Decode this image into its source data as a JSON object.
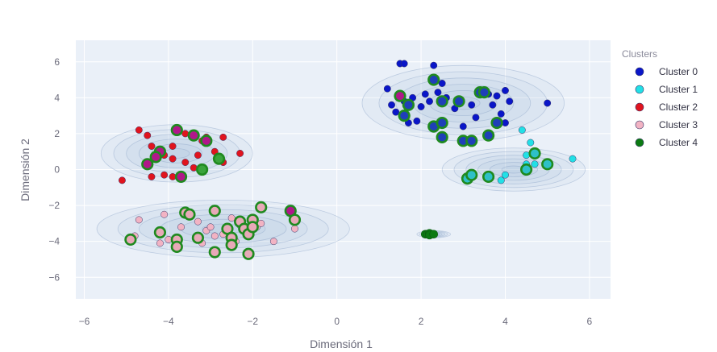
{
  "chart_data": {
    "type": "scatter",
    "xlabel": "Dimensión 1",
    "ylabel": "Dimensión 2",
    "xlim": [
      -6.2,
      6.5
    ],
    "ylim": [
      -7.2,
      7.2
    ],
    "x_ticks": [
      -6,
      -4,
      -2,
      0,
      2,
      4,
      6
    ],
    "y_ticks": [
      -6,
      -4,
      -2,
      0,
      2,
      4,
      6
    ],
    "grid": true,
    "legend_placement": "top-right",
    "legend": {
      "title": "Clusters",
      "entries": [
        {
          "name": "Cluster 0",
          "color": "#0a16c8"
        },
        {
          "name": "Cluster 1",
          "color": "#22e0e6"
        },
        {
          "name": "Cluster 2",
          "color": "#e0141e"
        },
        {
          "name": "Cluster 3",
          "color": "#f2b3c3"
        },
        {
          "name": "Cluster 4",
          "color": "#0c7a12"
        }
      ]
    },
    "density_regions": [
      {
        "cx": 3.0,
        "cy": 3.7,
        "rx": 2.4,
        "ry": 2.1
      },
      {
        "cx": 4.2,
        "cy": 0.0,
        "rx": 1.7,
        "ry": 1.2
      },
      {
        "cx": -3.8,
        "cy": 0.9,
        "rx": 1.8,
        "ry": 1.6
      },
      {
        "cx": -2.7,
        "cy": -3.3,
        "rx": 3.0,
        "ry": 1.6
      },
      {
        "cx": 2.3,
        "cy": -3.6,
        "rx": 0.4,
        "ry": 0.2
      }
    ],
    "series": [
      {
        "name": "Cluster 0",
        "color": "#0a16c8",
        "points": [
          [
            1.5,
            5.9
          ],
          [
            1.6,
            5.9
          ],
          [
            1.2,
            4.5
          ],
          [
            1.3,
            3.6
          ],
          [
            1.4,
            3.2
          ],
          [
            1.6,
            3.8
          ],
          [
            1.8,
            4.0
          ],
          [
            1.9,
            2.7
          ],
          [
            1.7,
            2.6
          ],
          [
            2.1,
            4.2
          ],
          [
            2.0,
            3.5
          ],
          [
            2.4,
            4.3
          ],
          [
            2.5,
            4.8
          ],
          [
            2.6,
            4.0
          ],
          [
            2.2,
            3.8
          ],
          [
            2.8,
            3.4
          ],
          [
            3.0,
            2.4
          ],
          [
            3.2,
            3.6
          ],
          [
            3.4,
            4.4
          ],
          [
            3.6,
            4.2
          ],
          [
            3.7,
            3.6
          ],
          [
            3.8,
            4.1
          ],
          [
            3.9,
            3.1
          ],
          [
            4.0,
            2.6
          ],
          [
            4.1,
            3.8
          ],
          [
            4.0,
            4.4
          ],
          [
            5.0,
            3.7
          ],
          [
            2.3,
            5.8
          ],
          [
            2.9,
            3.8
          ],
          [
            3.3,
            2.9
          ]
        ]
      },
      {
        "name": "Cluster 1",
        "color": "#22e0e6",
        "points": [
          [
            4.4,
            2.2
          ],
          [
            4.5,
            0.8
          ],
          [
            4.6,
            1.5
          ],
          [
            4.0,
            -0.3
          ],
          [
            3.9,
            -0.6
          ],
          [
            4.7,
            0.3
          ],
          [
            5.6,
            0.6
          ],
          [
            4.5,
            0.3
          ]
        ]
      },
      {
        "name": "Cluster 2",
        "color": "#e0141e",
        "points": [
          [
            -5.1,
            -0.6
          ],
          [
            -4.7,
            2.2
          ],
          [
            -4.5,
            1.9
          ],
          [
            -4.4,
            1.3
          ],
          [
            -4.2,
            1.1
          ],
          [
            -4.1,
            0.8
          ],
          [
            -4.1,
            -0.3
          ],
          [
            -3.9,
            1.3
          ],
          [
            -3.9,
            0.6
          ],
          [
            -3.8,
            2.3
          ],
          [
            -3.6,
            0.4
          ],
          [
            -3.6,
            2.0
          ],
          [
            -3.3,
            0.8
          ],
          [
            -3.4,
            0.1
          ],
          [
            -3.2,
            1.6
          ],
          [
            -3.1,
            1.8
          ],
          [
            -2.9,
            1.0
          ],
          [
            -2.7,
            1.8
          ],
          [
            -2.7,
            0.4
          ],
          [
            -2.3,
            0.9
          ],
          [
            -4.4,
            -0.4
          ],
          [
            -3.9,
            -0.4
          ]
        ]
      },
      {
        "name": "Cluster 3",
        "color": "#f2b3c3",
        "points": [
          [
            -4.7,
            -2.8
          ],
          [
            -4.8,
            -3.7
          ],
          [
            -4.2,
            -4.1
          ],
          [
            -4.1,
            -2.5
          ],
          [
            -4.0,
            -3.9
          ],
          [
            -3.8,
            -4.0
          ],
          [
            -3.7,
            -3.2
          ],
          [
            -3.3,
            -2.9
          ],
          [
            -3.1,
            -3.4
          ],
          [
            -3.0,
            -3.2
          ],
          [
            -2.9,
            -3.7
          ],
          [
            -2.7,
            -3.6
          ],
          [
            -2.5,
            -2.7
          ],
          [
            -2.3,
            -3.1
          ],
          [
            -2.1,
            -3.2
          ],
          [
            -1.9,
            -3.2
          ],
          [
            -1.5,
            -4.0
          ],
          [
            -1.0,
            -3.3
          ],
          [
            -3.2,
            -4.1
          ],
          [
            -2.4,
            -4.0
          ],
          [
            -1.8,
            -3.0
          ]
        ]
      }
    ],
    "highlighted": [
      {
        "x": -3.8,
        "y": 2.2,
        "fill": "#b1178a"
      },
      {
        "x": -3.4,
        "y": 1.9,
        "fill": "#b1178a"
      },
      {
        "x": -3.1,
        "y": 1.6,
        "fill": "#b1178a"
      },
      {
        "x": -4.2,
        "y": 1.0,
        "fill": "#b1178a"
      },
      {
        "x": -4.3,
        "y": 0.7,
        "fill": "#b1178a"
      },
      {
        "x": -4.5,
        "y": 0.3,
        "fill": "#b1178a"
      },
      {
        "x": -3.7,
        "y": -0.4,
        "fill": "#b1178a"
      },
      {
        "x": -1.1,
        "y": -2.3,
        "fill": "#b1178a"
      },
      {
        "x": 1.5,
        "y": 4.1,
        "fill": "#b1178a"
      },
      {
        "x": -3.2,
        "y": 0.0,
        "fill": "#3aa43c"
      },
      {
        "x": -2.8,
        "y": 0.6,
        "fill": "#3aa43c"
      },
      {
        "x": 1.6,
        "y": 3.0,
        "fill": "#1f3fb8"
      },
      {
        "x": 1.7,
        "y": 3.6,
        "fill": "#1f3fb8"
      },
      {
        "x": 2.3,
        "y": 5.0,
        "fill": "#1f3fb8"
      },
      {
        "x": 2.5,
        "y": 3.8,
        "fill": "#1f3fb8"
      },
      {
        "x": 2.3,
        "y": 2.4,
        "fill": "#1f3fb8"
      },
      {
        "x": 2.5,
        "y": 2.6,
        "fill": "#1f3fb8"
      },
      {
        "x": 2.5,
        "y": 1.8,
        "fill": "#1f3fb8"
      },
      {
        "x": 2.9,
        "y": 3.8,
        "fill": "#1f3fb8"
      },
      {
        "x": 3.0,
        "y": 1.6,
        "fill": "#1f3fb8"
      },
      {
        "x": 3.2,
        "y": 1.6,
        "fill": "#1f3fb8"
      },
      {
        "x": 3.4,
        "y": 4.3,
        "fill": "#1f3fb8"
      },
      {
        "x": 3.5,
        "y": 4.3,
        "fill": "#1f3fb8"
      },
      {
        "x": 3.6,
        "y": 1.9,
        "fill": "#1f3fb8"
      },
      {
        "x": 3.8,
        "y": 2.6,
        "fill": "#1f3fb8"
      },
      {
        "x": 3.1,
        "y": -0.5,
        "fill": "#2ec0c8"
      },
      {
        "x": 3.2,
        "y": -0.3,
        "fill": "#2ec0c8"
      },
      {
        "x": 3.6,
        "y": -0.4,
        "fill": "#2ec0c8"
      },
      {
        "x": 4.5,
        "y": 0.0,
        "fill": "#2ec0c8"
      },
      {
        "x": 4.7,
        "y": 0.9,
        "fill": "#2ec0c8"
      },
      {
        "x": 5.0,
        "y": 0.3,
        "fill": "#2ec0c8"
      },
      {
        "x": -4.9,
        "y": -3.9,
        "fill": "#e8a9b8"
      },
      {
        "x": -4.2,
        "y": -3.5,
        "fill": "#e8a9b8"
      },
      {
        "x": -3.8,
        "y": -3.9,
        "fill": "#e8a9b8"
      },
      {
        "x": -3.8,
        "y": -4.3,
        "fill": "#e8a9b8"
      },
      {
        "x": -3.6,
        "y": -2.4,
        "fill": "#e8a9b8"
      },
      {
        "x": -3.5,
        "y": -2.5,
        "fill": "#e8a9b8"
      },
      {
        "x": -3.3,
        "y": -3.8,
        "fill": "#e8a9b8"
      },
      {
        "x": -2.9,
        "y": -2.3,
        "fill": "#e8a9b8"
      },
      {
        "x": -2.9,
        "y": -4.6,
        "fill": "#e8a9b8"
      },
      {
        "x": -2.6,
        "y": -3.3,
        "fill": "#e8a9b8"
      },
      {
        "x": -2.5,
        "y": -3.8,
        "fill": "#e8a9b8"
      },
      {
        "x": -2.5,
        "y": -4.2,
        "fill": "#e8a9b8"
      },
      {
        "x": -2.3,
        "y": -2.9,
        "fill": "#e8a9b8"
      },
      {
        "x": -2.2,
        "y": -3.3,
        "fill": "#e8a9b8"
      },
      {
        "x": -2.1,
        "y": -3.6,
        "fill": "#e8a9b8"
      },
      {
        "x": -2.0,
        "y": -2.8,
        "fill": "#e8a9b8"
      },
      {
        "x": -2.0,
        "y": -3.2,
        "fill": "#e8a9b8"
      },
      {
        "x": -2.1,
        "y": -4.7,
        "fill": "#e8a9b8"
      },
      {
        "x": -1.8,
        "y": -2.1,
        "fill": "#e8a9b8"
      },
      {
        "x": -1.0,
        "y": -2.8,
        "fill": "#e8a9b8"
      }
    ],
    "highlight_ring_color": "#1f8a1f",
    "cluster4_points": [
      [
        2.1,
        -3.6
      ],
      [
        2.15,
        -3.6
      ],
      [
        2.2,
        -3.6
      ],
      [
        2.25,
        -3.6
      ],
      [
        2.2,
        -3.55
      ],
      [
        2.2,
        -3.65
      ],
      [
        2.3,
        -3.6
      ]
    ]
  }
}
